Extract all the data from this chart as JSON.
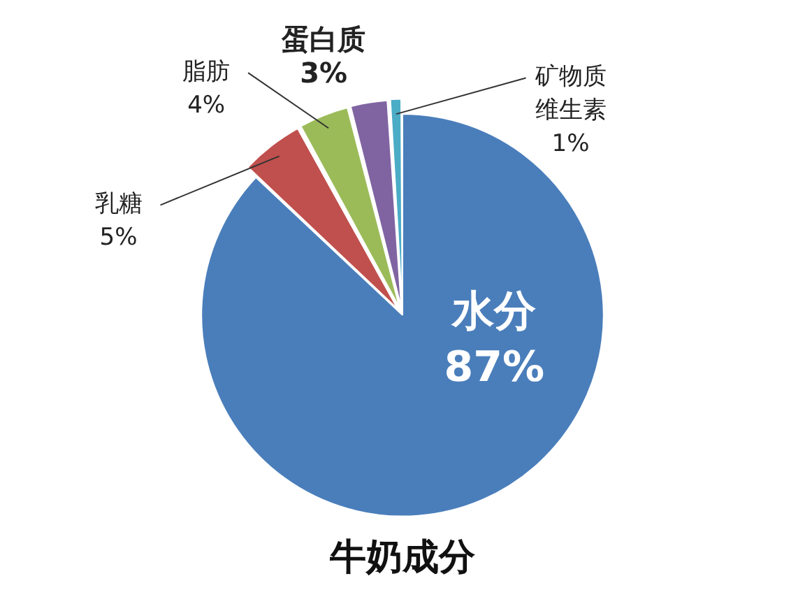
{
  "chart_data": {
    "type": "pie",
    "title": "牛奶成分",
    "categories": [
      "水分",
      "乳糖",
      "脂肪",
      "蛋白质",
      "矿物质维生素"
    ],
    "values": [
      87,
      5,
      4,
      3,
      1
    ],
    "colors": [
      "#4a7ebb",
      "#c0504d",
      "#9bbb59",
      "#8064a2",
      "#4bacc6"
    ],
    "value_labels": [
      "87%",
      "5%",
      "4%",
      "3%",
      "1%"
    ],
    "legend": false
  }
}
